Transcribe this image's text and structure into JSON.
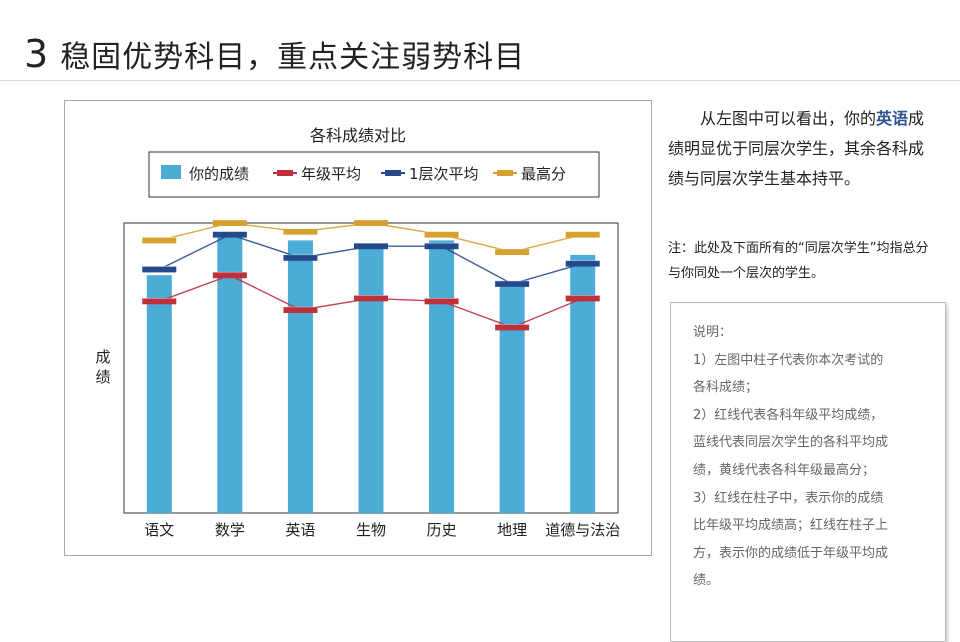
{
  "heading": {
    "number": "3",
    "text": "稳固优势科目，重点关注弱势科目"
  },
  "notes": {
    "main_prefix": "从左图中可以看出，你的",
    "main_highlight": "英语",
    "main_suffix": "成绩明显优于同层次学生，其余各科成绩与同层次学生基本持平。",
    "sub": "注：此处及下面所有的“同层次学生”均指总分与你同处一个层次的学生。"
  },
  "explanation": {
    "lines": [
      "说明：",
      "1）左图中柱子代表你本次考试的",
      "各科成绩；",
      "2）红线代表各科年级平均成绩，",
      "蓝线代表同层次学生的各科平均成",
      "绩，黄线代表各科年级最高分；",
      "3）红线在柱子中，表示你的成绩",
      "比年级平均成绩高；红线在柱子上",
      "方，表示你的成绩低于年级平均成",
      "绩。"
    ]
  },
  "chart_data": {
    "type": "bar",
    "title": "各科成绩对比",
    "ylabel": "成绩",
    "xlabel": "",
    "categories": [
      "语文",
      "数学",
      "英语",
      "生物",
      "历史",
      "地理",
      "道德与法治"
    ],
    "ylim": [
      0,
      100
    ],
    "grid": false,
    "legend_position": "top",
    "series": [
      {
        "name": "你的成绩",
        "kind": "bar",
        "color": "#4bacd6",
        "values": [
          82,
          97,
          94,
          93,
          94,
          78,
          89
        ]
      },
      {
        "name": "年级平均",
        "kind": "line",
        "color": "#c0303a",
        "values": [
          73,
          82,
          70,
          74,
          73,
          64,
          74
        ]
      },
      {
        "name": "1层次平均",
        "kind": "line",
        "color": "#254a8c",
        "values": [
          84,
          96,
          88,
          92,
          92,
          79,
          86
        ]
      },
      {
        "name": "最高分",
        "kind": "line",
        "color": "#d6a12e",
        "values": [
          94,
          100,
          97,
          100,
          96,
          90,
          96
        ]
      }
    ]
  }
}
